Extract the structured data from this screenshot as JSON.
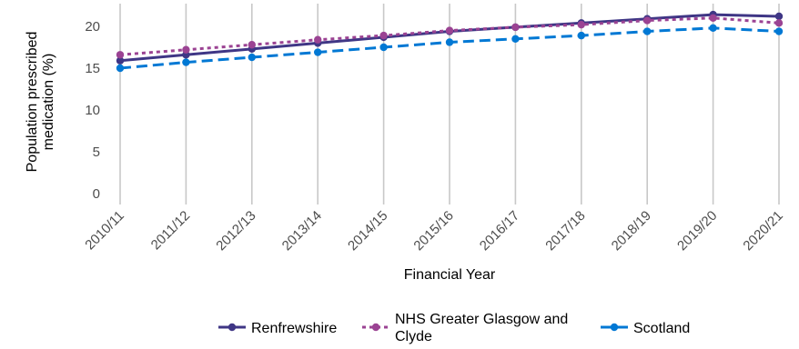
{
  "chart_data": {
    "type": "line",
    "categories": [
      "2010/11",
      "2011/12",
      "2012/13",
      "2013/14",
      "2014/15",
      "2015/16",
      "2016/17",
      "2017/18",
      "2018/19",
      "2019/20",
      "2020/21"
    ],
    "series": [
      {
        "name": "Renfrewshire",
        "color": "#3f3685",
        "dash": "solid",
        "values": [
          15.9,
          16.6,
          17.3,
          18.0,
          18.7,
          19.4,
          19.9,
          20.4,
          20.9,
          21.4,
          21.2
        ]
      },
      {
        "name": "NHS Greater Glasgow and Clyde",
        "color": "#9b4393",
        "dash": "dotted",
        "values": [
          16.6,
          17.2,
          17.8,
          18.4,
          18.9,
          19.5,
          19.9,
          20.2,
          20.7,
          21.0,
          20.4
        ]
      },
      {
        "name": "Scotland",
        "color": "#0078d4",
        "dash": "dashed",
        "values": [
          15.0,
          15.7,
          16.3,
          16.9,
          17.5,
          18.1,
          18.5,
          18.9,
          19.4,
          19.8,
          19.4
        ]
      }
    ],
    "xlabel": "Financial Year",
    "ylabel": "Population prescribed medication (%)",
    "ylabel_lines": [
      "Population prescribed",
      "medication (%)"
    ],
    "legend_lines": {
      "Renfrewshire": [
        "Renfrewshire"
      ],
      "NHS Greater Glasgow and Clyde": [
        "NHS Greater Glasgow and",
        "Clyde"
      ],
      "Scotland": [
        "Scotland"
      ]
    },
    "yticks": [
      0,
      5,
      10,
      15,
      20
    ],
    "ylim": [
      0,
      22.5
    ],
    "grid": "vertical",
    "legend": "bottom"
  }
}
